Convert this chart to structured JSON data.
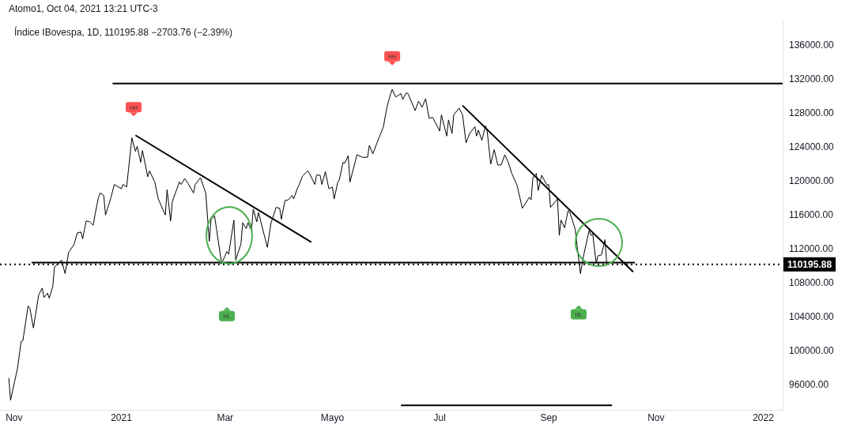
{
  "chart_data": {
    "type": "line",
    "title": "Índice IBovespa, 1D, 110195.88 −2703.76 (−2.39%)",
    "annotations": [
      "Atomo1, Oct 04, 2021 13:21 UTC-3",
      {
        "text": "HH",
        "x": "2021-01-08",
        "y": 128700
      },
      {
        "text": "HH",
        "x": "2021-06-04",
        "y": 134700
      },
      {
        "text": "HL",
        "x": "2021-03-02",
        "y": 104100
      },
      {
        "text": "HL",
        "x": "2021-09-18",
        "y": 104300
      }
    ],
    "series": [
      {
        "color": "#000000",
        "x": [
          "2020-10-29",
          "2020-10-30",
          "2020-11-03",
          "2020-11-05",
          "2020-11-06",
          "2020-11-09",
          "2020-11-10",
          "2020-11-12",
          "2020-11-15",
          "2020-11-17",
          "2020-11-18",
          "2020-11-20",
          "2020-11-21",
          "2020-11-23",
          "2020-11-24",
          "2020-11-28",
          "2020-11-30",
          "2020-12-02",
          "2020-12-05",
          "2020-12-07",
          "2020-12-09",
          "2020-12-10",
          "2020-12-12",
          "2020-12-14",
          "2020-12-16",
          "2020-12-17",
          "2020-12-19",
          "2020-12-20",
          "2020-12-22",
          "2020-12-23",
          "2020-12-26",
          "2020-12-28",
          "2021-01-01",
          "2021-01-02",
          "2021-01-04",
          "2021-01-07",
          "2021-01-09",
          "2021-01-10",
          "2021-01-12",
          "2021-01-13",
          "2021-01-16",
          "2021-01-17",
          "2021-01-20",
          "2021-01-22",
          "2021-01-26",
          "2021-01-27",
          "2021-01-29",
          "2021-01-30",
          "2021-02-03",
          "2021-02-04",
          "2021-02-06",
          "2021-02-08",
          "2021-02-11",
          "2021-02-12",
          "2021-02-15",
          "2021-02-18",
          "2021-02-20",
          "2021-02-21",
          "2021-02-23",
          "2021-02-27",
          "2021-03-02",
          "2021-03-03",
          "2021-03-06",
          "2021-03-07",
          "2021-03-10",
          "2021-03-11",
          "2021-03-13",
          "2021-03-14",
          "2021-03-16",
          "2021-03-17",
          "2021-03-19",
          "2021-03-20",
          "2021-03-25",
          "2021-03-27",
          "2021-03-30",
          "2021-04-01",
          "2021-04-02",
          "2021-04-04",
          "2021-04-06",
          "2021-04-08",
          "2021-04-09",
          "2021-04-11",
          "2021-04-12",
          "2021-04-14",
          "2021-04-17",
          "2021-04-18",
          "2021-04-21",
          "2021-04-22",
          "2021-04-24",
          "2021-04-25",
          "2021-04-27",
          "2021-04-29",
          "2021-05-01",
          "2021-05-02",
          "2021-05-04",
          "2021-05-05",
          "2021-05-07",
          "2021-05-08",
          "2021-05-10",
          "2021-05-11",
          "2021-05-15",
          "2021-05-18",
          "2021-05-21",
          "2021-05-22",
          "2021-05-24",
          "2021-05-26",
          "2021-05-30",
          "2021-06-01",
          "2021-06-03",
          "2021-06-04",
          "2021-06-06",
          "2021-06-09",
          "2021-06-10",
          "2021-06-12",
          "2021-06-13",
          "2021-06-17",
          "2021-06-19",
          "2021-06-21",
          "2021-06-23",
          "2021-06-25",
          "2021-06-27",
          "2021-07-01",
          "2021-07-02",
          "2021-07-05",
          "2021-07-06",
          "2021-07-08",
          "2021-07-09",
          "2021-07-12",
          "2021-07-14",
          "2021-07-16",
          "2021-07-18",
          "2021-07-21",
          "2021-07-22",
          "2021-07-23",
          "2021-07-25",
          "2021-07-27",
          "2021-07-28",
          "2021-07-30",
          "2021-08-01",
          "2021-08-03",
          "2021-08-05",
          "2021-08-07",
          "2021-08-09",
          "2021-08-11",
          "2021-08-14",
          "2021-08-17",
          "2021-08-21",
          "2021-08-22",
          "2021-08-23",
          "2021-08-25",
          "2021-08-26",
          "2021-08-28",
          "2021-08-31",
          "2021-09-01",
          "2021-09-02",
          "2021-09-06",
          "2021-09-07",
          "2021-09-08",
          "2021-09-10",
          "2021-09-12",
          "2021-09-13",
          "2021-09-16",
          "2021-09-19",
          "2021-09-21",
          "2021-09-24",
          "2021-09-25",
          "2021-09-26",
          "2021-09-28",
          "2021-09-29",
          "2021-10-01",
          "2021-10-03",
          "2021-10-04"
        ],
        "values": [
          96800,
          94200,
          98000,
          101100,
          101200,
          105300,
          105000,
          102700,
          106600,
          107400,
          106300,
          106800,
          106200,
          107600,
          109900,
          110700,
          109100,
          111600,
          112500,
          113900,
          114000,
          113200,
          115300,
          115200,
          114800,
          116000,
          118100,
          118600,
          118300,
          116000,
          118000,
          119600,
          119100,
          119600,
          119300,
          125100,
          123500,
          124100,
          122200,
          123600,
          120500,
          121200,
          119900,
          117900,
          116000,
          119000,
          115300,
          117600,
          119900,
          119600,
          120300,
          119700,
          118600,
          119600,
          120400,
          118600,
          112900,
          115500,
          115900,
          110300,
          111700,
          111400,
          115400,
          110700,
          112600,
          115100,
          114400,
          115100,
          114200,
          116700,
          115200,
          116300,
          112200,
          115000,
          116900,
          116800,
          115500,
          117700,
          117800,
          118300,
          117900,
          119100,
          119500,
          120600,
          121200,
          120900,
          119600,
          120700,
          120700,
          119600,
          121100,
          119100,
          119300,
          117900,
          119800,
          120200,
          122200,
          122100,
          123000,
          119900,
          123100,
          122800,
          122800,
          124200,
          123200,
          124300,
          126400,
          128700,
          130200,
          130800,
          129900,
          130300,
          129600,
          130400,
          130300,
          128300,
          129400,
          128700,
          129700,
          127400,
          127500,
          125900,
          127800,
          125300,
          127200,
          125600,
          127800,
          128600,
          127800,
          124500,
          125600,
          126400,
          125300,
          126000,
          124800,
          126500,
          125900,
          122000,
          123700,
          121900,
          121900,
          123100,
          122200,
          120900,
          119500,
          116800,
          118100,
          117800,
          120400,
          120900,
          118900,
          120700,
          119500,
          119600,
          116900,
          117900,
          113600,
          115400,
          114500,
          116500,
          116300,
          114400,
          109100,
          111400,
          114200,
          113600,
          113800,
          110300,
          111200,
          111300,
          113100,
          110195.88
        ]
      },
      {
        "color": "#000000",
        "type": "line",
        "x": [
          "2021-01-09",
          "2021-04-19"
        ],
        "values": [
          125400,
          112800
        ]
      },
      {
        "color": "#000000",
        "type": "line",
        "x": [
          "2021-07-14",
          "2021-10-19"
        ],
        "values": [
          128900,
          109300
        ]
      },
      {
        "color": "#000000",
        "type": "line",
        "x": [
          "2020-12-27",
          "2022-01-12"
        ],
        "values": [
          131500,
          131500
        ]
      },
      {
        "color": "#000000",
        "type": "line",
        "x": [
          "2020-11-11",
          "2021-10-20"
        ],
        "values": [
          110400,
          110400
        ]
      },
      {
        "color": "#000000",
        "type": "line",
        "x": [
          "2021-06-09",
          "2021-10-07"
        ],
        "values": [
          93600,
          93600
        ]
      }
    ],
    "xlim": [
      "2020-10-24",
      "2022-01-12"
    ],
    "xticks": [
      {
        "value": "2020-11-01",
        "label": "Nov"
      },
      {
        "value": "2021-01-01",
        "label": "2021"
      },
      {
        "value": "2021-03-01",
        "label": "Mar"
      },
      {
        "value": "2021-05-01",
        "label": "Mayo"
      },
      {
        "value": "2021-07-01",
        "label": "Jul"
      },
      {
        "value": "2021-09-01",
        "label": "Sep"
      },
      {
        "value": "2021-11-01",
        "label": "Nov"
      },
      {
        "value": "2022-01-01",
        "label": "2022"
      }
    ],
    "ylim": [
      93000,
      139000
    ],
    "yticks": [
      {
        "value": 96000,
        "label": "96000.00"
      },
      {
        "value": 100000,
        "label": "100000.00"
      },
      {
        "value": 104000,
        "label": "104000.00"
      },
      {
        "value": 108000,
        "label": "108000.00"
      },
      {
        "value": 112000,
        "label": "112000.00"
      },
      {
        "value": 116000,
        "label": "116000.00"
      },
      {
        "value": 120000,
        "label": "120000.00"
      },
      {
        "value": 124000,
        "label": "124000.00"
      },
      {
        "value": 128000,
        "label": "128000.00"
      },
      {
        "value": 132000,
        "label": "132000.00"
      },
      {
        "value": 136000,
        "label": "136000.00"
      }
    ],
    "ref_lines": [
      {
        "axis": "y",
        "value": 110195.88,
        "label": "110195.88",
        "line_style": "dotted",
        "color": "#000000"
      }
    ],
    "grid": false,
    "legend": false,
    "marker": "none"
  }
}
